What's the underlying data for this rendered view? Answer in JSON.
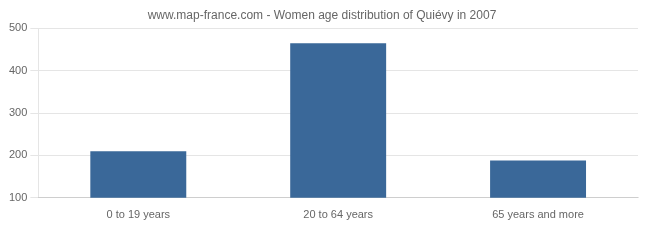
{
  "chart_data": {
    "type": "bar",
    "title": "www.map-france.com - Women age distribution of Quiévy in 2007",
    "categories": [
      "0 to 19 years",
      "20 to 64 years",
      "65 years and more"
    ],
    "values": [
      210,
      465,
      188
    ],
    "color": "#3a6899",
    "ylim": [
      100,
      500
    ],
    "yticks": [
      100,
      200,
      300,
      400,
      500
    ],
    "grid": true
  }
}
